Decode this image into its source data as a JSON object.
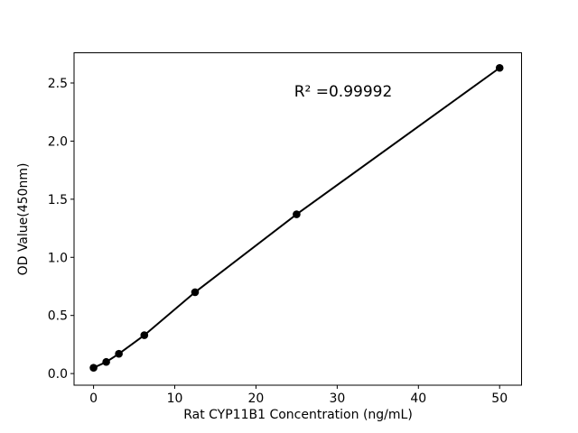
{
  "figure": {
    "background_color": "#ffffff",
    "foreground_color": "#000000"
  },
  "chart_data": {
    "type": "line",
    "title": "",
    "xlabel": "Rat CYP11B1 Concentration (ng/mL)",
    "ylabel": "OD Value(450nm)",
    "annotation": "R² =0.99992",
    "x": [
      0,
      1.56,
      3.12,
      6.25,
      12.5,
      25,
      50
    ],
    "y": [
      0.05,
      0.1,
      0.17,
      0.33,
      0.7,
      1.37,
      2.63
    ],
    "xticks": [
      0,
      10,
      20,
      30,
      40,
      50
    ],
    "yticks": [
      0.0,
      0.5,
      1.0,
      1.5,
      2.0,
      2.5
    ],
    "xlim": [
      -2.4,
      52.7
    ],
    "ylim": [
      -0.1,
      2.76
    ],
    "grid": false,
    "legend_position": "none",
    "line_color": "#000000",
    "marker_color": "#000000",
    "marker_shape": "circle"
  }
}
